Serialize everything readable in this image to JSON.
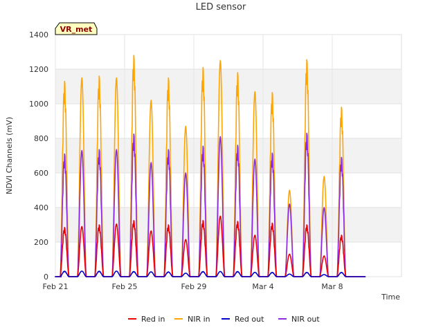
{
  "chart_data": {
    "type": "line",
    "title": "LED sensor",
    "xlabel": "Time",
    "ylabel": "NDVI Channels (mV)",
    "badge": "VR_met",
    "ylim": [
      0,
      1400
    ],
    "yticks": [
      0,
      200,
      400,
      600,
      800,
      1000,
      1200,
      1400
    ],
    "xrange_days": [
      0,
      20
    ],
    "xtick_labels": [
      "Feb 21",
      "Feb 25",
      "Feb 29",
      "Mar 4",
      "Mar 8"
    ],
    "xtick_days": [
      0,
      4,
      8,
      12,
      16
    ],
    "grid": true,
    "legend_position": "bottom-center",
    "day_numbers": [
      0,
      1,
      2,
      3,
      4,
      5,
      6,
      7,
      8,
      9,
      10,
      11,
      12,
      13,
      14,
      15,
      16,
      17
    ],
    "series": [
      {
        "name": "Red in",
        "color": "#ee0000",
        "daily_peaks": [
          285,
          290,
          300,
          305,
          325,
          265,
          300,
          215,
          325,
          350,
          320,
          240,
          310,
          130,
          300,
          120,
          240,
          0
        ]
      },
      {
        "name": "NIR in",
        "color": "#ffa500",
        "daily_peaks": [
          1130,
          1150,
          1160,
          1150,
          1280,
          1020,
          1150,
          870,
          1210,
          1250,
          1180,
          1070,
          1065,
          500,
          1255,
          580,
          980,
          0
        ]
      },
      {
        "name": "Red out",
        "color": "#0000cc",
        "daily_peaks": [
          32,
          32,
          32,
          32,
          30,
          28,
          28,
          20,
          30,
          30,
          30,
          25,
          25,
          15,
          25,
          12,
          25,
          0
        ]
      },
      {
        "name": "NIR out",
        "color": "#8a2be2",
        "daily_peaks": [
          710,
          730,
          735,
          735,
          825,
          660,
          735,
          600,
          755,
          810,
          760,
          680,
          715,
          420,
          830,
          400,
          690,
          0
        ]
      }
    ]
  }
}
